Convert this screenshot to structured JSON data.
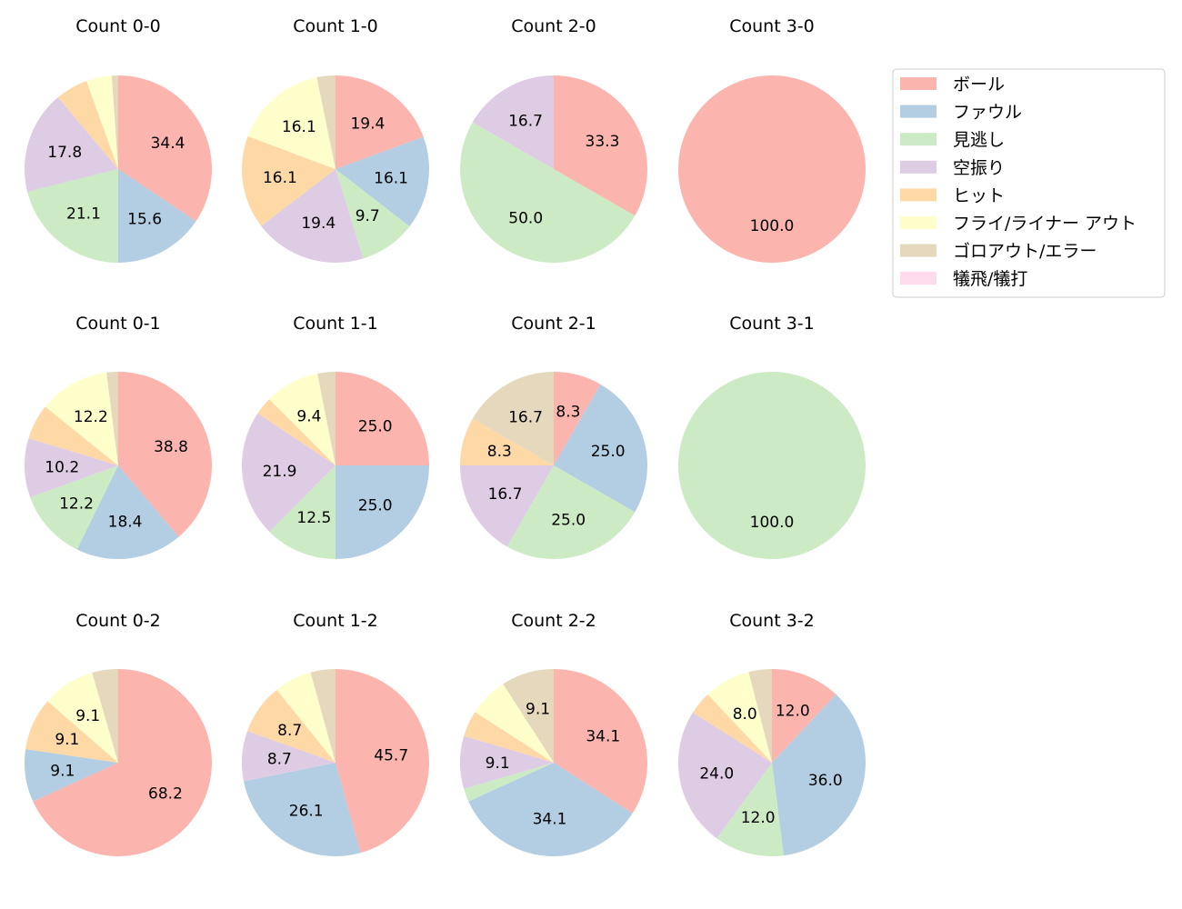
{
  "chart_data": {
    "type": "pie",
    "start_angle": 90,
    "direction": "clockwise",
    "legend_position": "right",
    "categories": [
      "ボール",
      "ファウル",
      "見逃し",
      "空振り",
      "ヒット",
      "フライ/ライナー アウト",
      "ゴロアウト/エラー",
      "犠飛/犠打"
    ],
    "colors": [
      "#fbb4ae",
      "#b3cde3",
      "#ccebc5",
      "#decbe4",
      "#fed9a6",
      "#ffffcc",
      "#e5d8bd",
      "#fddaec"
    ],
    "pies": [
      {
        "title": "Count 0-0",
        "values": [
          34.4,
          15.6,
          21.1,
          17.8,
          5.6,
          4.4,
          1.1,
          0
        ]
      },
      {
        "title": "Count 1-0",
        "values": [
          19.4,
          16.1,
          9.7,
          19.4,
          16.1,
          16.1,
          3.2,
          0
        ]
      },
      {
        "title": "Count 2-0",
        "values": [
          33.3,
          0,
          50.0,
          16.7,
          0,
          0,
          0,
          0
        ]
      },
      {
        "title": "Count 3-0",
        "values": [
          100.0,
          0,
          0,
          0,
          0,
          0,
          0,
          0
        ]
      },
      {
        "title": "Count 0-1",
        "values": [
          38.8,
          18.4,
          12.2,
          10.2,
          6.1,
          12.2,
          2.0,
          0
        ]
      },
      {
        "title": "Count 1-1",
        "values": [
          25.0,
          25.0,
          12.5,
          21.9,
          3.1,
          9.4,
          3.1,
          0
        ]
      },
      {
        "title": "Count 2-1",
        "values": [
          8.3,
          25.0,
          25.0,
          16.7,
          8.3,
          0,
          16.7,
          0
        ]
      },
      {
        "title": "Count 3-1",
        "values": [
          0,
          0,
          100.0,
          0,
          0,
          0,
          0,
          0
        ]
      },
      {
        "title": "Count 0-2",
        "values": [
          68.2,
          9.1,
          0,
          0,
          9.1,
          9.1,
          4.5,
          0
        ]
      },
      {
        "title": "Count 1-2",
        "values": [
          45.7,
          26.1,
          0,
          8.7,
          8.7,
          6.5,
          4.3,
          0
        ]
      },
      {
        "title": "Count 2-2",
        "values": [
          34.1,
          34.1,
          2.3,
          9.1,
          4.5,
          6.8,
          9.1,
          0
        ]
      },
      {
        "title": "Count 3-2",
        "values": [
          12.0,
          36.0,
          12.0,
          24.0,
          4.0,
          8.0,
          4.0,
          0
        ]
      }
    ]
  }
}
